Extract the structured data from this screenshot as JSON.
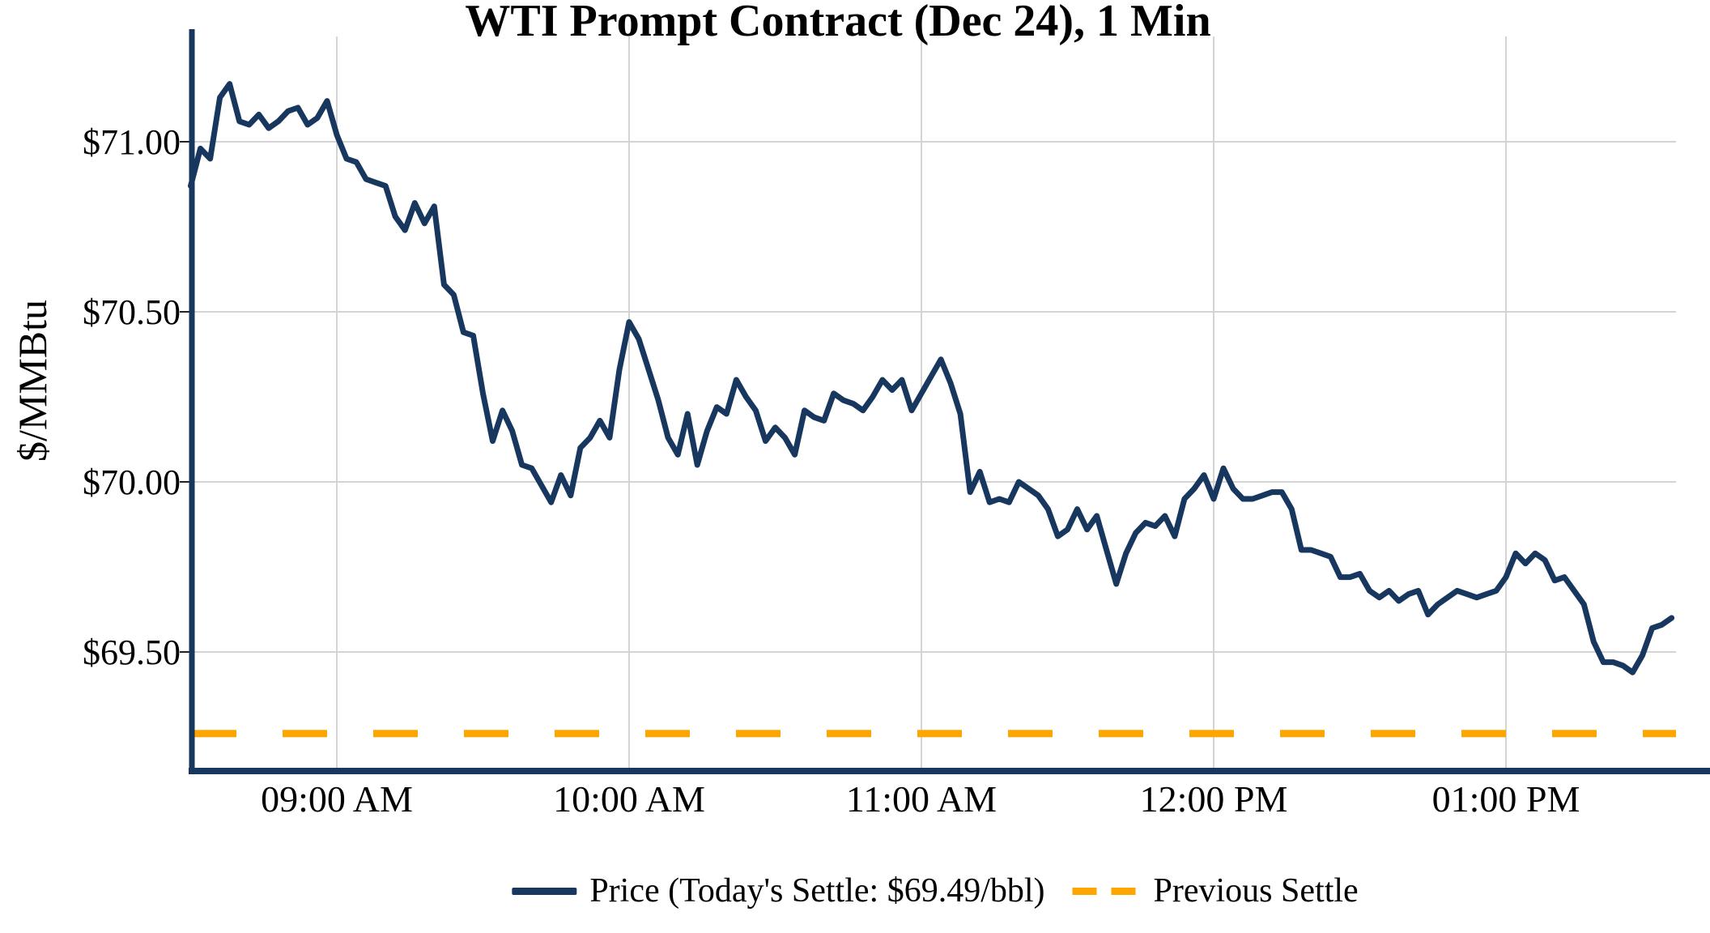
{
  "title": "WTI Prompt Contract (Dec 24), 1 Min",
  "y_axis_label": "$/MMBtu",
  "legend": {
    "price_label": "Price (Today's Settle: $69.49/bbl)",
    "prev_settle_label": "Previous Settle"
  },
  "colors": {
    "price_line": "#17375e",
    "prev_settle_line": "#ffa500",
    "gridline": "#d4d4d4",
    "axis_spine": "#17375e",
    "tick_text": "#000000"
  },
  "chart_data": {
    "type": "line",
    "title": "WTI Prompt Contract (Dec 24), 1 Min",
    "xlabel": "",
    "ylabel": "$/MMBtu",
    "legend_position": "bottom",
    "grid": true,
    "ylim": [
      69.15,
      71.31
    ],
    "y_ticks": [
      {
        "label": "$71.00",
        "value": 71.0
      },
      {
        "label": "$70.50",
        "value": 70.5
      },
      {
        "label": "$70.00",
        "value": 70.0
      },
      {
        "label": "$69.50",
        "value": 69.5
      }
    ],
    "x_ticks": [
      {
        "label": "09:00 AM",
        "minute": 30
      },
      {
        "label": "10:00 AM",
        "minute": 90
      },
      {
        "label": "11:00 AM",
        "minute": 150
      },
      {
        "label": "12:00 PM",
        "minute": 210
      },
      {
        "label": "01:00 PM",
        "minute": 270
      }
    ],
    "today_settle": 69.49,
    "previous_settle": 69.26,
    "series": [
      {
        "name": "Price (Today's Settle: $69.49/bbl)",
        "style": "solid",
        "start_time": "08:30 AM",
        "step_minutes": 2,
        "values": [
          70.87,
          70.98,
          70.95,
          71.13,
          71.17,
          71.06,
          71.05,
          71.08,
          71.04,
          71.06,
          71.09,
          71.1,
          71.05,
          71.07,
          71.12,
          71.02,
          70.95,
          70.94,
          70.89,
          70.88,
          70.87,
          70.78,
          70.74,
          70.82,
          70.76,
          70.81,
          70.58,
          70.55,
          70.44,
          70.43,
          70.26,
          70.12,
          70.21,
          70.15,
          70.05,
          70.04,
          69.99,
          69.94,
          70.02,
          69.96,
          70.1,
          70.13,
          70.18,
          70.13,
          70.33,
          70.47,
          70.42,
          70.33,
          70.24,
          70.13,
          70.08,
          70.2,
          70.05,
          70.15,
          70.22,
          70.2,
          70.3,
          70.25,
          70.21,
          70.12,
          70.16,
          70.13,
          70.08,
          70.21,
          70.19,
          70.18,
          70.26,
          70.24,
          70.23,
          70.21,
          70.25,
          70.3,
          70.27,
          70.3,
          70.21,
          70.26,
          70.31,
          70.36,
          70.29,
          70.2,
          69.97,
          70.03,
          69.94,
          69.95,
          69.94,
          70.0,
          69.98,
          69.96,
          69.92,
          69.84,
          69.86,
          69.92,
          69.86,
          69.9,
          69.8,
          69.7,
          69.79,
          69.85,
          69.88,
          69.87,
          69.9,
          69.84,
          69.95,
          69.98,
          70.02,
          69.95,
          70.04,
          69.98,
          69.95,
          69.95,
          69.96,
          69.97,
          69.97,
          69.92,
          69.8,
          69.8,
          69.79,
          69.78,
          69.72,
          69.72,
          69.73,
          69.68,
          69.66,
          69.68,
          69.65,
          69.67,
          69.68,
          69.61,
          69.64,
          69.66,
          69.68,
          69.67,
          69.66,
          69.67,
          69.68,
          69.72,
          69.79,
          69.76,
          69.79,
          69.77,
          69.71,
          69.72,
          69.68,
          69.64,
          69.53,
          69.47,
          69.47,
          69.46,
          69.44,
          69.49,
          69.57,
          69.58,
          69.6
        ]
      },
      {
        "name": "Previous Settle",
        "style": "dashed",
        "value": 69.26
      }
    ]
  }
}
